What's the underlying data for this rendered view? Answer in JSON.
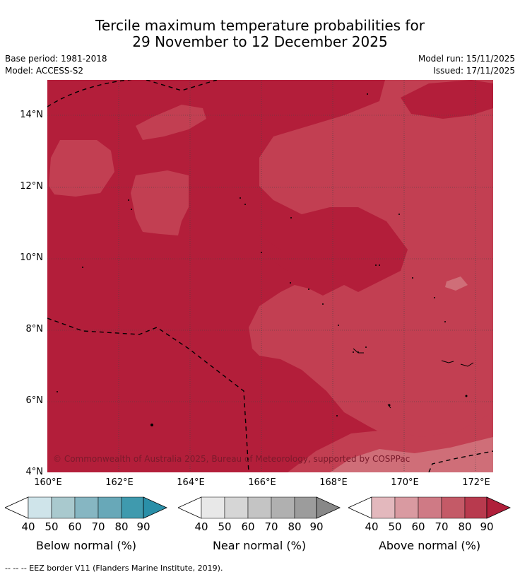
{
  "title": {
    "line1": "Tercile maximum temperature probabilities for",
    "line2": "29 November to 12 December 2025"
  },
  "meta": {
    "base_period": "Base period: 1981-2018",
    "model": "Model: ACCESS-S2",
    "model_run": "Model run: 15/11/2025",
    "issued": "Issued: 17/11/2025"
  },
  "map": {
    "lat_labels": [
      "14°N",
      "12°N",
      "10°N",
      "8°N",
      "6°N",
      "4°N"
    ],
    "lon_labels": [
      "160°E",
      "162°E",
      "164°E",
      "166°E",
      "168°E",
      "170°E",
      "172°E"
    ],
    "copyright": "© Commonwealth of Australia 2025, Bureau of Meteorology, supported by COSPPac",
    "colors": {
      "above_80": "#b31e3a",
      "above_70": "#c23f52",
      "above_60": "#cf6e78"
    }
  },
  "colorbars": [
    {
      "title": "Below normal (%)",
      "ticks": [
        "40",
        "50",
        "60",
        "70",
        "80",
        "90"
      ],
      "colors": [
        "#cfe4ea",
        "#a9c9ce",
        "#86b6c2",
        "#68a8b8",
        "#3f9aae",
        "#2a8fa8"
      ]
    },
    {
      "title": "Near normal (%)",
      "ticks": [
        "40",
        "50",
        "60",
        "70",
        "80",
        "90"
      ],
      "colors": [
        "#e8e8e8",
        "#d6d6d6",
        "#c4c4c4",
        "#b0b0b0",
        "#9c9c9c",
        "#888888"
      ]
    },
    {
      "title": "Above normal (%)",
      "ticks": [
        "40",
        "50",
        "60",
        "70",
        "80",
        "90"
      ],
      "colors": [
        "#e3b8bd",
        "#d99aa1",
        "#cf7a85",
        "#c45a67",
        "#b83a4e",
        "#b01f3a"
      ]
    }
  ],
  "footer": "-- -- -- EEZ border V11 (Flanders Marine Institute, 2019)."
}
